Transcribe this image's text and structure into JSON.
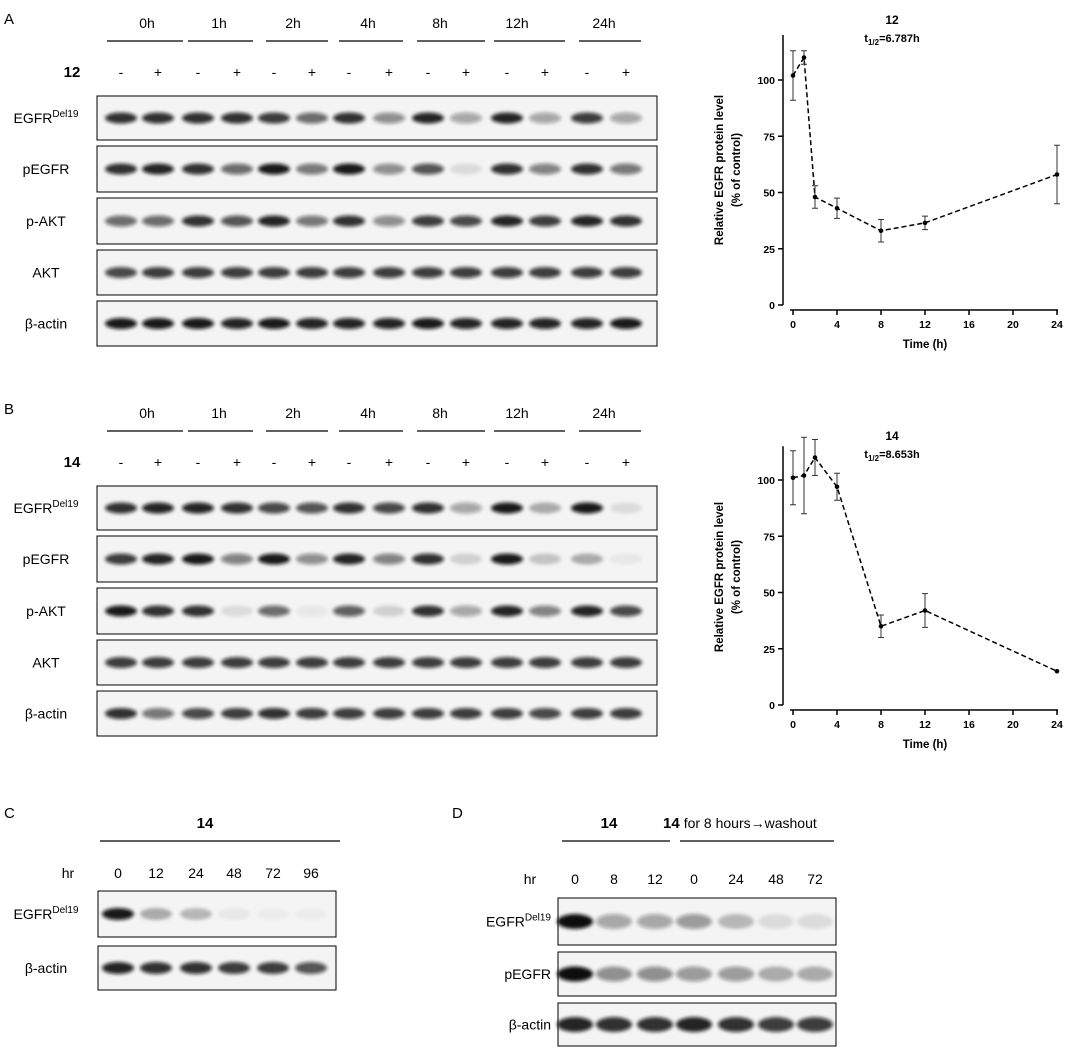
{
  "panels": {
    "A": {
      "label": "A",
      "times": [
        "0h",
        "1h",
        "2h",
        "4h",
        "8h",
        "12h",
        "24h"
      ],
      "compound": "12",
      "treatment": [
        "-",
        "+",
        "-",
        "+",
        "-",
        "+",
        "-",
        "+",
        "-",
        "+",
        "-",
        "+",
        "-",
        "+"
      ],
      "rows": [
        {
          "label": "EGFR",
          "sup": "Del19",
          "intensity": [
            0.85,
            0.85,
            0.85,
            0.85,
            0.8,
            0.6,
            0.85,
            0.45,
            0.9,
            0.35,
            0.9,
            0.35,
            0.8,
            0.35
          ]
        },
        {
          "label": "pEGFR",
          "intensity": [
            0.85,
            0.9,
            0.85,
            0.6,
            0.95,
            0.55,
            0.95,
            0.45,
            0.7,
            0.1,
            0.85,
            0.5,
            0.85,
            0.55
          ]
        },
        {
          "label": "p-AKT",
          "intensity": [
            0.6,
            0.6,
            0.85,
            0.7,
            0.9,
            0.55,
            0.85,
            0.45,
            0.8,
            0.75,
            0.9,
            0.8,
            0.9,
            0.85
          ]
        },
        {
          "label": "AKT",
          "intensity": [
            0.75,
            0.8,
            0.8,
            0.8,
            0.8,
            0.8,
            0.8,
            0.8,
            0.8,
            0.8,
            0.8,
            0.8,
            0.8,
            0.8
          ]
        },
        {
          "label": "β-actin",
          "intensity": [
            0.95,
            0.95,
            0.95,
            0.9,
            0.95,
            0.9,
            0.9,
            0.9,
            0.95,
            0.9,
            0.9,
            0.9,
            0.9,
            0.95
          ]
        }
      ]
    },
    "B": {
      "label": "B",
      "times": [
        "0h",
        "1h",
        "2h",
        "4h",
        "8h",
        "12h",
        "24h"
      ],
      "compound": "14",
      "treatment": [
        "-",
        "+",
        "-",
        "+",
        "-",
        "+",
        "-",
        "+",
        "-",
        "+",
        "-",
        "+",
        "-",
        "+"
      ],
      "rows": [
        {
          "label": "EGFR",
          "sup": "Del19",
          "intensity": [
            0.85,
            0.9,
            0.9,
            0.85,
            0.75,
            0.7,
            0.85,
            0.75,
            0.85,
            0.35,
            0.95,
            0.3,
            0.95,
            0.1
          ]
        },
        {
          "label": "pEGFR",
          "intensity": [
            0.8,
            0.9,
            0.95,
            0.5,
            0.95,
            0.45,
            0.9,
            0.5,
            0.85,
            0.15,
            0.95,
            0.2,
            0.3,
            0.05
          ]
        },
        {
          "label": "p-AKT",
          "intensity": [
            0.95,
            0.85,
            0.85,
            0.1,
            0.6,
            0.05,
            0.65,
            0.15,
            0.85,
            0.35,
            0.9,
            0.5,
            0.9,
            0.75
          ]
        },
        {
          "label": "AKT",
          "intensity": [
            0.8,
            0.8,
            0.8,
            0.8,
            0.8,
            0.8,
            0.8,
            0.8,
            0.8,
            0.8,
            0.8,
            0.8,
            0.8,
            0.8
          ]
        },
        {
          "label": "β-actin",
          "intensity": [
            0.85,
            0.55,
            0.75,
            0.8,
            0.85,
            0.8,
            0.8,
            0.8,
            0.8,
            0.8,
            0.8,
            0.75,
            0.8,
            0.8
          ]
        }
      ]
    },
    "C": {
      "label": "C",
      "compound": "14",
      "hr_label": "hr",
      "hours": [
        "0",
        "12",
        "24",
        "48",
        "72",
        "96"
      ],
      "rows": [
        {
          "label": "EGFR",
          "sup": "Del19",
          "intensity": [
            0.95,
            0.3,
            0.25,
            0.05,
            0.03,
            0.03
          ]
        },
        {
          "label": "β-actin",
          "intensity": [
            0.9,
            0.85,
            0.85,
            0.8,
            0.8,
            0.7
          ]
        }
      ]
    },
    "D": {
      "label": "D",
      "compound": "14",
      "washout": {
        "compound": "14",
        "text": "for 8 hours→washout"
      },
      "hr_label": "hr",
      "hours": [
        "0",
        "8",
        "12",
        "0",
        "24",
        "48",
        "72"
      ],
      "rows": [
        {
          "label": "EGFR",
          "sup": "Del19",
          "intensity": [
            1.0,
            0.35,
            0.35,
            0.4,
            0.25,
            0.1,
            0.1
          ]
        },
        {
          "label": "pEGFR",
          "intensity": [
            1.0,
            0.45,
            0.45,
            0.4,
            0.4,
            0.3,
            0.3
          ]
        },
        {
          "label": "β-actin",
          "intensity": [
            0.9,
            0.85,
            0.85,
            0.9,
            0.85,
            0.8,
            0.8
          ]
        }
      ]
    }
  },
  "chart_data": [
    {
      "type": "line",
      "title": "12",
      "subtitle": {
        "main": "t",
        "sub": "1/2",
        "rest": "=6.787h"
      },
      "xlabel": "Time (h)",
      "ylabel": [
        "Relative EGFR protein level",
        "(% of control)"
      ],
      "x": [
        0,
        1,
        2,
        4,
        8,
        12,
        24
      ],
      "y": [
        102,
        110,
        48,
        43,
        33,
        36.5,
        58
      ],
      "error": [
        11,
        3,
        5,
        4.5,
        5,
        3,
        13
      ],
      "xticks": [
        0,
        4,
        8,
        12,
        16,
        20,
        24
      ],
      "yticks": [
        0,
        25,
        50,
        75,
        100
      ],
      "xlim": [
        0,
        24
      ],
      "ylim": [
        0,
        120
      ],
      "line_style": "dashed",
      "grid": false
    },
    {
      "type": "line",
      "title": "14",
      "subtitle": {
        "main": "t",
        "sub": "1/2",
        "rest": "=8.653h"
      },
      "xlabel": "Time (h)",
      "ylabel": [
        "Relative EGFR protein level",
        "(% of control)"
      ],
      "x": [
        0,
        1,
        2,
        4,
        8,
        12,
        24
      ],
      "y": [
        101,
        102,
        110,
        97,
        35,
        42,
        15
      ],
      "error": [
        12,
        17,
        8,
        6,
        5,
        7.5,
        0
      ],
      "xticks": [
        0,
        4,
        8,
        12,
        16,
        20,
        24
      ],
      "yticks": [
        0,
        25,
        50,
        75,
        100
      ],
      "xlim": [
        0,
        24
      ],
      "ylim": [
        0,
        115
      ],
      "line_style": "dashed",
      "grid": false
    }
  ]
}
